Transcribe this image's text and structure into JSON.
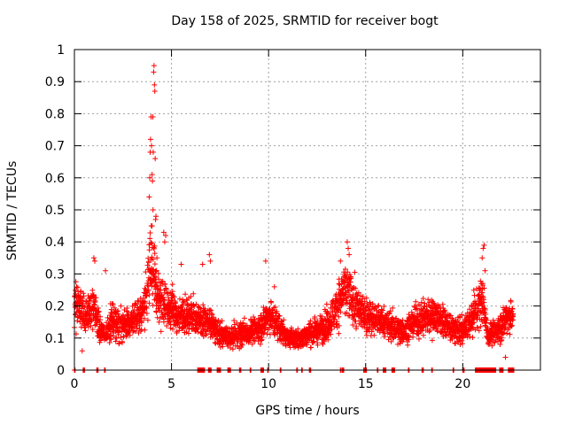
{
  "chart_data": {
    "type": "scatter",
    "title": "Day 158 of 2025, SRMTID for receiver bogt",
    "xlabel": "GPS time / hours",
    "ylabel": "SRMTID / TECUs",
    "xlim": [
      0,
      24
    ],
    "ylim": [
      0,
      1
    ],
    "xticks": [
      0,
      5,
      10,
      15,
      20
    ],
    "xtick_labels": [
      "0",
      "5",
      "10",
      "15",
      "20"
    ],
    "yticks": [
      0,
      0.1,
      0.2,
      0.3,
      0.4,
      0.5,
      0.6,
      0.7,
      0.8,
      0.9,
      1
    ],
    "ytick_labels": [
      "0",
      "0.1",
      "0.2",
      "0.3",
      "0.4",
      "0.5",
      "0.6",
      "0.7",
      "0.8",
      "0.9",
      "1"
    ],
    "grid": true,
    "marker": "+",
    "color": "#ff0000",
    "series": [
      {
        "name": "SRMTID",
        "trend": [
          [
            0.0,
            0.22
          ],
          [
            0.3,
            0.19
          ],
          [
            0.6,
            0.17
          ],
          [
            1.0,
            0.2
          ],
          [
            1.3,
            0.12
          ],
          [
            1.6,
            0.11
          ],
          [
            2.0,
            0.16
          ],
          [
            2.5,
            0.14
          ],
          [
            3.0,
            0.15
          ],
          [
            3.4,
            0.17
          ],
          [
            3.7,
            0.22
          ],
          [
            3.9,
            0.35
          ],
          [
            4.1,
            0.28
          ],
          [
            4.4,
            0.22
          ],
          [
            4.8,
            0.2
          ],
          [
            5.3,
            0.17
          ],
          [
            6.0,
            0.17
          ],
          [
            6.6,
            0.15
          ],
          [
            7.0,
            0.15
          ],
          [
            7.5,
            0.11
          ],
          [
            8.0,
            0.1
          ],
          [
            8.5,
            0.11
          ],
          [
            9.0,
            0.12
          ],
          [
            9.5,
            0.13
          ],
          [
            10.0,
            0.17
          ],
          [
            10.5,
            0.14
          ],
          [
            11.0,
            0.1
          ],
          [
            11.5,
            0.1
          ],
          [
            12.0,
            0.11
          ],
          [
            12.5,
            0.12
          ],
          [
            13.0,
            0.14
          ],
          [
            13.5,
            0.2
          ],
          [
            14.0,
            0.25
          ],
          [
            14.5,
            0.2
          ],
          [
            15.0,
            0.17
          ],
          [
            15.5,
            0.16
          ],
          [
            16.0,
            0.15
          ],
          [
            16.5,
            0.13
          ],
          [
            17.0,
            0.12
          ],
          [
            17.5,
            0.15
          ],
          [
            18.0,
            0.16
          ],
          [
            18.5,
            0.17
          ],
          [
            19.0,
            0.15
          ],
          [
            19.5,
            0.13
          ],
          [
            20.0,
            0.12
          ],
          [
            20.5,
            0.16
          ],
          [
            21.0,
            0.22
          ],
          [
            21.3,
            0.11
          ],
          [
            21.7,
            0.12
          ],
          [
            22.0,
            0.14
          ],
          [
            22.3,
            0.17
          ],
          [
            22.6,
            0.16
          ]
        ],
        "spikes": [
          [
            3.85,
            0.54
          ],
          [
            3.88,
            0.6
          ],
          [
            3.9,
            0.68
          ],
          [
            3.92,
            0.72
          ],
          [
            3.95,
            0.79
          ],
          [
            3.97,
            0.7
          ],
          [
            4.0,
            0.61
          ],
          [
            4.02,
            0.59
          ],
          [
            4.04,
            0.79
          ],
          [
            4.06,
            0.68
          ],
          [
            4.08,
            0.93
          ],
          [
            4.1,
            0.95
          ],
          [
            4.12,
            0.89
          ],
          [
            4.14,
            0.87
          ],
          [
            4.16,
            0.66
          ],
          [
            4.18,
            0.47
          ],
          [
            4.2,
            0.48
          ],
          [
            4.25,
            0.35
          ],
          [
            4.6,
            0.43
          ],
          [
            4.7,
            0.42
          ],
          [
            4.65,
            0.4
          ],
          [
            6.95,
            0.36
          ],
          [
            7.0,
            0.34
          ],
          [
            9.85,
            0.34
          ],
          [
            13.7,
            0.34
          ],
          [
            14.05,
            0.4
          ],
          [
            14.1,
            0.38
          ],
          [
            14.15,
            0.36
          ],
          [
            21.05,
            0.38
          ],
          [
            21.1,
            0.39
          ],
          [
            21.0,
            0.35
          ],
          [
            21.15,
            0.31
          ],
          [
            1.0,
            0.35
          ],
          [
            1.05,
            0.34
          ],
          [
            1.6,
            0.31
          ],
          [
            0.4,
            0.06
          ],
          [
            22.2,
            0.04
          ],
          [
            4.0,
            0.45
          ],
          [
            4.05,
            0.5
          ],
          [
            6.6,
            0.33
          ],
          [
            5.5,
            0.33
          ],
          [
            10.3,
            0.26
          ]
        ],
        "zero_segments": [
          [
            0.0,
            0.05
          ],
          [
            0.45,
            0.55
          ],
          [
            1.15,
            1.25
          ],
          [
            1.55,
            1.6
          ],
          [
            6.35,
            6.7
          ],
          [
            6.9,
            7.05
          ],
          [
            7.35,
            7.55
          ],
          [
            7.9,
            8.05
          ],
          [
            8.5,
            8.6
          ],
          [
            9.05,
            9.1
          ],
          [
            9.6,
            9.75
          ],
          [
            9.95,
            10.0
          ],
          [
            10.6,
            10.65
          ],
          [
            11.45,
            11.5
          ],
          [
            11.7,
            11.75
          ],
          [
            12.1,
            12.2
          ],
          [
            13.7,
            13.75
          ],
          [
            13.8,
            13.9
          ],
          [
            14.9,
            15.05
          ],
          [
            15.6,
            15.65
          ],
          [
            15.9,
            16.05
          ],
          [
            16.35,
            16.5
          ],
          [
            17.2,
            17.25
          ],
          [
            17.9,
            18.0
          ],
          [
            18.4,
            18.45
          ],
          [
            19.5,
            19.55
          ],
          [
            20.0,
            20.1
          ],
          [
            20.65,
            21.7
          ],
          [
            21.9,
            22.1
          ],
          [
            22.35,
            22.65
          ]
        ]
      }
    ]
  }
}
